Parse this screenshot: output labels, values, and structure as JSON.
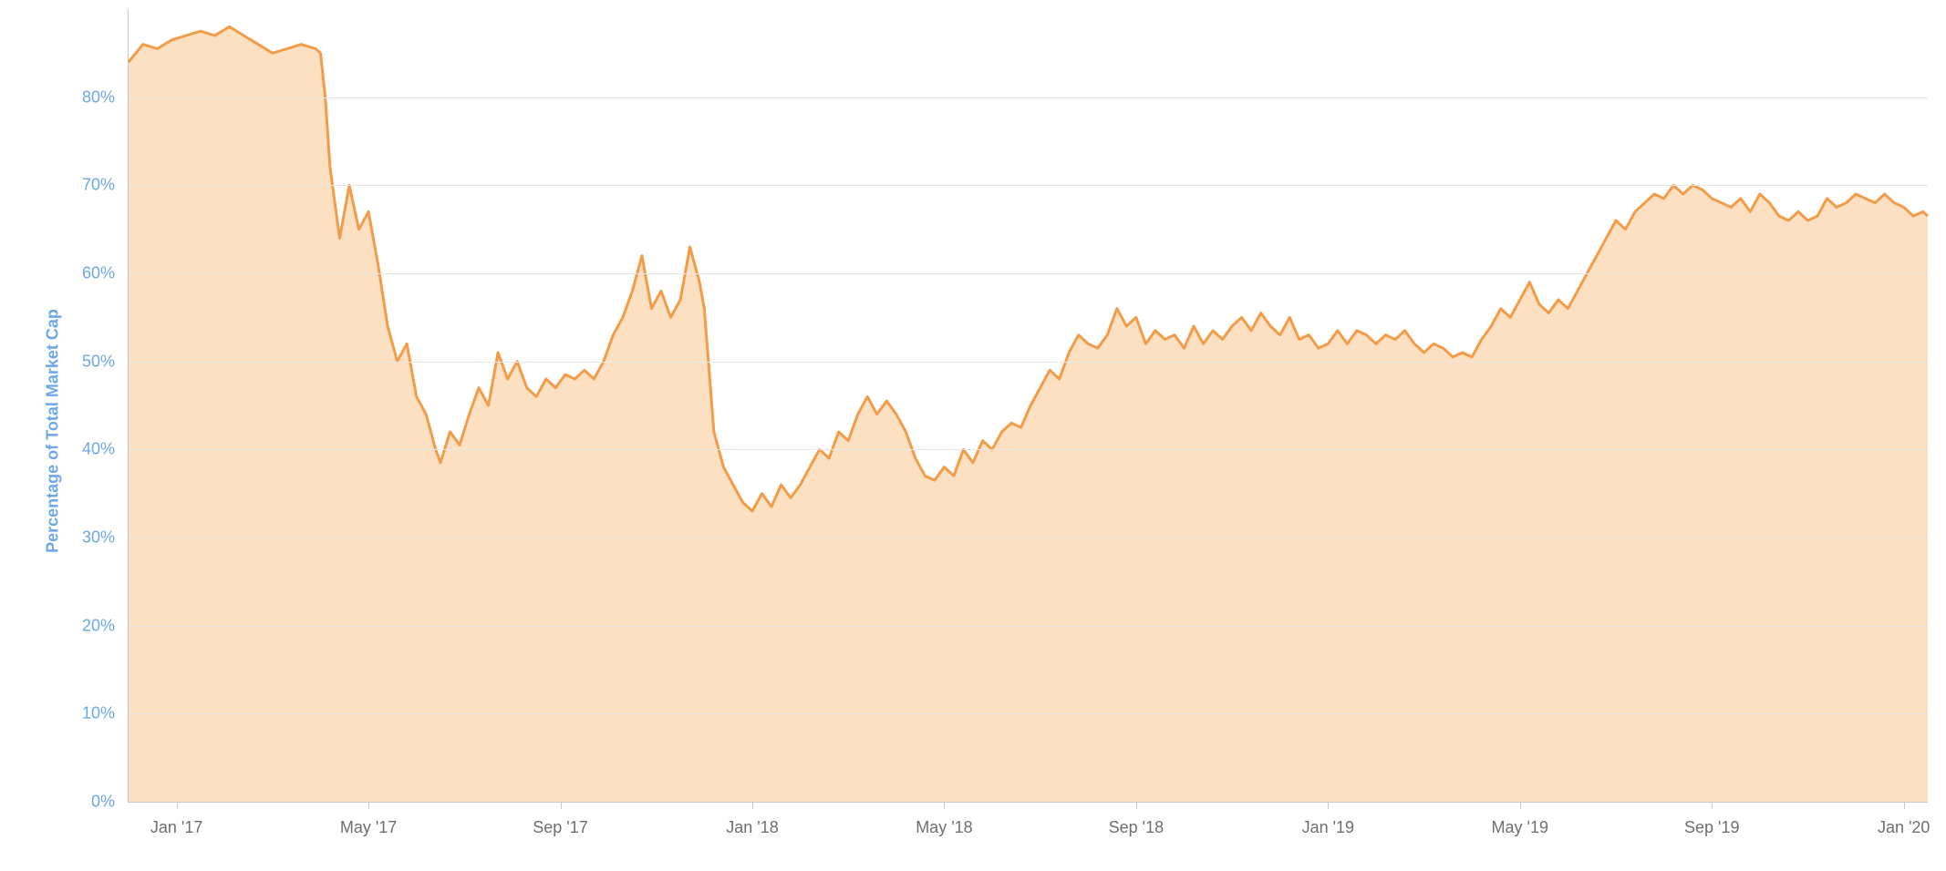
{
  "chart": {
    "type": "area",
    "y_axis": {
      "title": "Percentage of Total Market Cap",
      "title_color": "#6ca7e8",
      "min": 0,
      "max": 90,
      "tick_step": 10,
      "ticks": [
        0,
        10,
        20,
        30,
        40,
        50,
        60,
        70,
        80
      ],
      "tick_suffix": "%",
      "tick_color": "#6ca7e8",
      "tick_fontsize": 18
    },
    "x_axis": {
      "min": 0,
      "max": 37.5,
      "ticks": [
        {
          "pos": 1,
          "label": "Jan '17"
        },
        {
          "pos": 5,
          "label": "May '17"
        },
        {
          "pos": 9,
          "label": "Sep '17"
        },
        {
          "pos": 13,
          "label": "Jan '18"
        },
        {
          "pos": 17,
          "label": "May '18"
        },
        {
          "pos": 21,
          "label": "Sep '18"
        },
        {
          "pos": 25,
          "label": "Jan '19"
        },
        {
          "pos": 29,
          "label": "May '19"
        },
        {
          "pos": 33,
          "label": "Sep '19"
        },
        {
          "pos": 37,
          "label": "Jan '20"
        }
      ],
      "tick_color": "#6e6e6e",
      "tick_fontsize": 18
    },
    "series": {
      "line_color": "#f39c47",
      "line_width": 3,
      "fill_color": "#fbe0c2",
      "fill_opacity": 1.0,
      "data": [
        {
          "x": 0.0,
          "y": 84.0
        },
        {
          "x": 0.3,
          "y": 86.0
        },
        {
          "x": 0.6,
          "y": 85.5
        },
        {
          "x": 0.9,
          "y": 86.5
        },
        {
          "x": 1.2,
          "y": 87.0
        },
        {
          "x": 1.5,
          "y": 87.5
        },
        {
          "x": 1.8,
          "y": 87.0
        },
        {
          "x": 2.1,
          "y": 88.0
        },
        {
          "x": 2.4,
          "y": 87.0
        },
        {
          "x": 2.7,
          "y": 86.0
        },
        {
          "x": 3.0,
          "y": 85.0
        },
        {
          "x": 3.3,
          "y": 85.5
        },
        {
          "x": 3.6,
          "y": 86.0
        },
        {
          "x": 3.9,
          "y": 85.5
        },
        {
          "x": 4.0,
          "y": 85.0
        },
        {
          "x": 4.1,
          "y": 80.0
        },
        {
          "x": 4.2,
          "y": 72.0
        },
        {
          "x": 4.3,
          "y": 68.0
        },
        {
          "x": 4.4,
          "y": 64.0
        },
        {
          "x": 4.5,
          "y": 67.0
        },
        {
          "x": 4.6,
          "y": 70.0
        },
        {
          "x": 4.8,
          "y": 65.0
        },
        {
          "x": 5.0,
          "y": 67.0
        },
        {
          "x": 5.2,
          "y": 61.0
        },
        {
          "x": 5.4,
          "y": 54.0
        },
        {
          "x": 5.6,
          "y": 50.0
        },
        {
          "x": 5.8,
          "y": 52.0
        },
        {
          "x": 6.0,
          "y": 46.0
        },
        {
          "x": 6.2,
          "y": 44.0
        },
        {
          "x": 6.4,
          "y": 40.0
        },
        {
          "x": 6.5,
          "y": 38.5
        },
        {
          "x": 6.7,
          "y": 42.0
        },
        {
          "x": 6.9,
          "y": 40.5
        },
        {
          "x": 7.1,
          "y": 44.0
        },
        {
          "x": 7.3,
          "y": 47.0
        },
        {
          "x": 7.5,
          "y": 45.0
        },
        {
          "x": 7.7,
          "y": 51.0
        },
        {
          "x": 7.9,
          "y": 48.0
        },
        {
          "x": 8.1,
          "y": 50.0
        },
        {
          "x": 8.3,
          "y": 47.0
        },
        {
          "x": 8.5,
          "y": 46.0
        },
        {
          "x": 8.7,
          "y": 48.0
        },
        {
          "x": 8.9,
          "y": 47.0
        },
        {
          "x": 9.1,
          "y": 48.5
        },
        {
          "x": 9.3,
          "y": 48.0
        },
        {
          "x": 9.5,
          "y": 49.0
        },
        {
          "x": 9.7,
          "y": 48.0
        },
        {
          "x": 9.9,
          "y": 50.0
        },
        {
          "x": 10.1,
          "y": 53.0
        },
        {
          "x": 10.3,
          "y": 55.0
        },
        {
          "x": 10.5,
          "y": 58.0
        },
        {
          "x": 10.7,
          "y": 62.0
        },
        {
          "x": 10.9,
          "y": 56.0
        },
        {
          "x": 11.1,
          "y": 58.0
        },
        {
          "x": 11.3,
          "y": 55.0
        },
        {
          "x": 11.5,
          "y": 57.0
        },
        {
          "x": 11.7,
          "y": 63.0
        },
        {
          "x": 11.9,
          "y": 59.0
        },
        {
          "x": 12.0,
          "y": 56.0
        },
        {
          "x": 12.1,
          "y": 49.0
        },
        {
          "x": 12.2,
          "y": 42.0
        },
        {
          "x": 12.4,
          "y": 38.0
        },
        {
          "x": 12.6,
          "y": 36.0
        },
        {
          "x": 12.8,
          "y": 34.0
        },
        {
          "x": 13.0,
          "y": 33.0
        },
        {
          "x": 13.2,
          "y": 35.0
        },
        {
          "x": 13.4,
          "y": 33.5
        },
        {
          "x": 13.6,
          "y": 36.0
        },
        {
          "x": 13.8,
          "y": 34.5
        },
        {
          "x": 14.0,
          "y": 36.0
        },
        {
          "x": 14.2,
          "y": 38.0
        },
        {
          "x": 14.4,
          "y": 40.0
        },
        {
          "x": 14.6,
          "y": 39.0
        },
        {
          "x": 14.8,
          "y": 42.0
        },
        {
          "x": 15.0,
          "y": 41.0
        },
        {
          "x": 15.2,
          "y": 44.0
        },
        {
          "x": 15.4,
          "y": 46.0
        },
        {
          "x": 15.6,
          "y": 44.0
        },
        {
          "x": 15.8,
          "y": 45.5
        },
        {
          "x": 16.0,
          "y": 44.0
        },
        {
          "x": 16.2,
          "y": 42.0
        },
        {
          "x": 16.4,
          "y": 39.0
        },
        {
          "x": 16.6,
          "y": 37.0
        },
        {
          "x": 16.8,
          "y": 36.5
        },
        {
          "x": 17.0,
          "y": 38.0
        },
        {
          "x": 17.2,
          "y": 37.0
        },
        {
          "x": 17.4,
          "y": 40.0
        },
        {
          "x": 17.6,
          "y": 38.5
        },
        {
          "x": 17.8,
          "y": 41.0
        },
        {
          "x": 18.0,
          "y": 40.0
        },
        {
          "x": 18.2,
          "y": 42.0
        },
        {
          "x": 18.4,
          "y": 43.0
        },
        {
          "x": 18.6,
          "y": 42.5
        },
        {
          "x": 18.8,
          "y": 45.0
        },
        {
          "x": 19.0,
          "y": 47.0
        },
        {
          "x": 19.2,
          "y": 49.0
        },
        {
          "x": 19.4,
          "y": 48.0
        },
        {
          "x": 19.6,
          "y": 51.0
        },
        {
          "x": 19.8,
          "y": 53.0
        },
        {
          "x": 20.0,
          "y": 52.0
        },
        {
          "x": 20.2,
          "y": 51.5
        },
        {
          "x": 20.4,
          "y": 53.0
        },
        {
          "x": 20.6,
          "y": 56.0
        },
        {
          "x": 20.8,
          "y": 54.0
        },
        {
          "x": 21.0,
          "y": 55.0
        },
        {
          "x": 21.2,
          "y": 52.0
        },
        {
          "x": 21.4,
          "y": 53.5
        },
        {
          "x": 21.6,
          "y": 52.5
        },
        {
          "x": 21.8,
          "y": 53.0
        },
        {
          "x": 22.0,
          "y": 51.5
        },
        {
          "x": 22.2,
          "y": 54.0
        },
        {
          "x": 22.4,
          "y": 52.0
        },
        {
          "x": 22.6,
          "y": 53.5
        },
        {
          "x": 22.8,
          "y": 52.5
        },
        {
          "x": 23.0,
          "y": 54.0
        },
        {
          "x": 23.2,
          "y": 55.0
        },
        {
          "x": 23.4,
          "y": 53.5
        },
        {
          "x": 23.6,
          "y": 55.5
        },
        {
          "x": 23.8,
          "y": 54.0
        },
        {
          "x": 24.0,
          "y": 53.0
        },
        {
          "x": 24.2,
          "y": 55.0
        },
        {
          "x": 24.4,
          "y": 52.5
        },
        {
          "x": 24.6,
          "y": 53.0
        },
        {
          "x": 24.8,
          "y": 51.5
        },
        {
          "x": 25.0,
          "y": 52.0
        },
        {
          "x": 25.2,
          "y": 53.5
        },
        {
          "x": 25.4,
          "y": 52.0
        },
        {
          "x": 25.6,
          "y": 53.5
        },
        {
          "x": 25.8,
          "y": 53.0
        },
        {
          "x": 26.0,
          "y": 52.0
        },
        {
          "x": 26.2,
          "y": 53.0
        },
        {
          "x": 26.4,
          "y": 52.5
        },
        {
          "x": 26.6,
          "y": 53.5
        },
        {
          "x": 26.8,
          "y": 52.0
        },
        {
          "x": 27.0,
          "y": 51.0
        },
        {
          "x": 27.2,
          "y": 52.0
        },
        {
          "x": 27.4,
          "y": 51.5
        },
        {
          "x": 27.6,
          "y": 50.5
        },
        {
          "x": 27.8,
          "y": 51.0
        },
        {
          "x": 28.0,
          "y": 50.5
        },
        {
          "x": 28.2,
          "y": 52.5
        },
        {
          "x": 28.4,
          "y": 54.0
        },
        {
          "x": 28.6,
          "y": 56.0
        },
        {
          "x": 28.8,
          "y": 55.0
        },
        {
          "x": 29.0,
          "y": 57.0
        },
        {
          "x": 29.2,
          "y": 59.0
        },
        {
          "x": 29.4,
          "y": 56.5
        },
        {
          "x": 29.6,
          "y": 55.5
        },
        {
          "x": 29.8,
          "y": 57.0
        },
        {
          "x": 30.0,
          "y": 56.0
        },
        {
          "x": 30.2,
          "y": 58.0
        },
        {
          "x": 30.4,
          "y": 60.0
        },
        {
          "x": 30.6,
          "y": 62.0
        },
        {
          "x": 30.8,
          "y": 64.0
        },
        {
          "x": 31.0,
          "y": 66.0
        },
        {
          "x": 31.2,
          "y": 65.0
        },
        {
          "x": 31.4,
          "y": 67.0
        },
        {
          "x": 31.6,
          "y": 68.0
        },
        {
          "x": 31.8,
          "y": 69.0
        },
        {
          "x": 32.0,
          "y": 68.5
        },
        {
          "x": 32.2,
          "y": 70.0
        },
        {
          "x": 32.4,
          "y": 69.0
        },
        {
          "x": 32.6,
          "y": 70.0
        },
        {
          "x": 32.8,
          "y": 69.5
        },
        {
          "x": 33.0,
          "y": 68.5
        },
        {
          "x": 33.2,
          "y": 68.0
        },
        {
          "x": 33.4,
          "y": 67.5
        },
        {
          "x": 33.6,
          "y": 68.5
        },
        {
          "x": 33.8,
          "y": 67.0
        },
        {
          "x": 34.0,
          "y": 69.0
        },
        {
          "x": 34.2,
          "y": 68.0
        },
        {
          "x": 34.4,
          "y": 66.5
        },
        {
          "x": 34.6,
          "y": 66.0
        },
        {
          "x": 34.8,
          "y": 67.0
        },
        {
          "x": 35.0,
          "y": 66.0
        },
        {
          "x": 35.2,
          "y": 66.5
        },
        {
          "x": 35.4,
          "y": 68.5
        },
        {
          "x": 35.6,
          "y": 67.5
        },
        {
          "x": 35.8,
          "y": 68.0
        },
        {
          "x": 36.0,
          "y": 69.0
        },
        {
          "x": 36.2,
          "y": 68.5
        },
        {
          "x": 36.4,
          "y": 68.0
        },
        {
          "x": 36.6,
          "y": 69.0
        },
        {
          "x": 36.8,
          "y": 68.0
        },
        {
          "x": 37.0,
          "y": 67.5
        },
        {
          "x": 37.2,
          "y": 66.5
        },
        {
          "x": 37.4,
          "y": 67.0
        },
        {
          "x": 37.5,
          "y": 66.5
        }
      ]
    },
    "grid_color": "#e6e6e6",
    "axis_line_color": "#c8c8c8",
    "background_color": "#ffffff"
  }
}
